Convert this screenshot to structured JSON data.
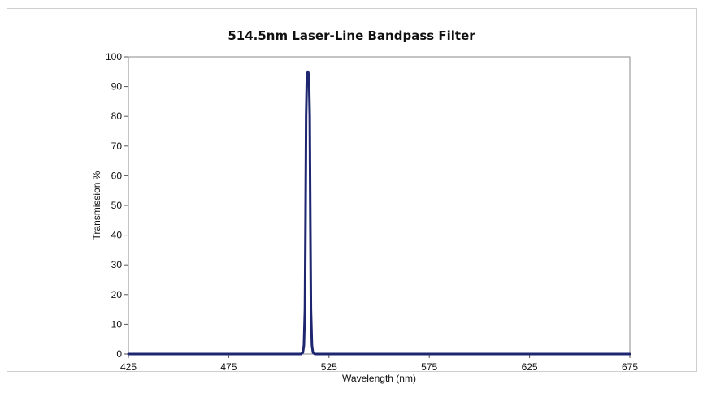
{
  "chart_data": {
    "type": "line",
    "title": "514.5nm Laser-Line Bandpass Filter",
    "xlabel": "Wavelength (nm)",
    "ylabel": "Transmission %",
    "xlim": [
      425,
      675
    ],
    "ylim": [
      0,
      100
    ],
    "xticks": [
      425,
      475,
      525,
      575,
      625,
      675
    ],
    "yticks": [
      0,
      10,
      20,
      30,
      40,
      50,
      60,
      70,
      80,
      90,
      100
    ],
    "grid": false,
    "series": [
      {
        "color": "#1f2670",
        "x": [
          425,
          511,
          512,
          512.5,
          513,
          513.3,
          513.6,
          514,
          514.5,
          515,
          515.4,
          515.7,
          516,
          516.5,
          517,
          518,
          675
        ],
        "y": [
          0,
          0,
          0.5,
          3,
          15,
          45,
          80,
          94,
          95,
          94,
          80,
          45,
          15,
          3,
          0.5,
          0,
          0
        ]
      }
    ]
  }
}
